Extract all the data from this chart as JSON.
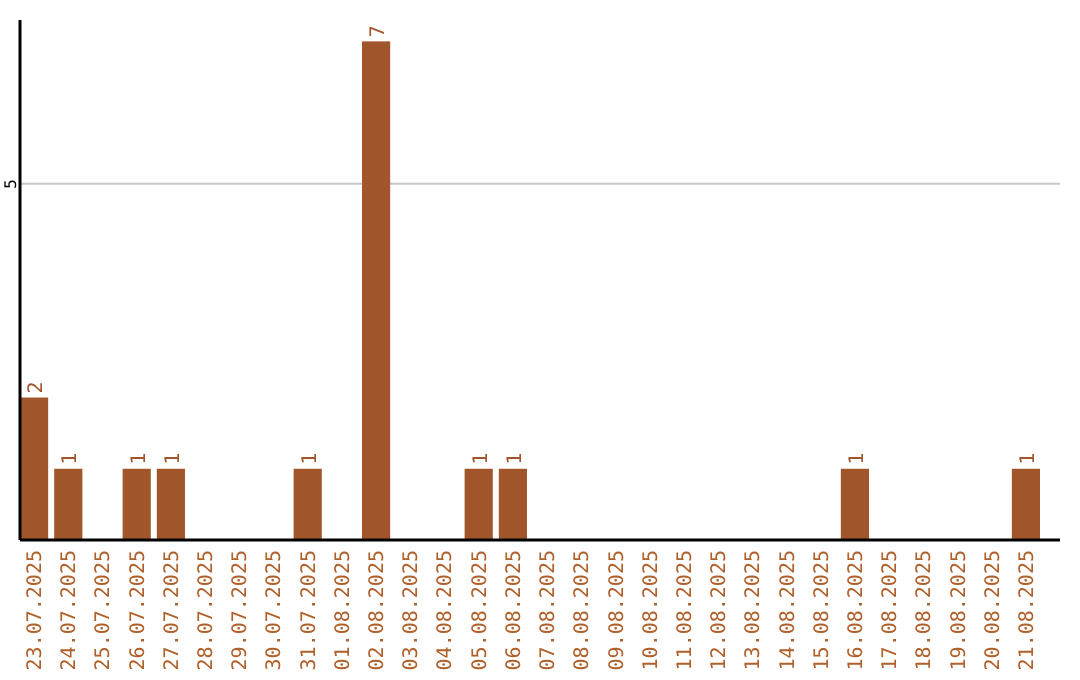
{
  "chart_data": {
    "type": "bar",
    "categories": [
      "23.07.2025",
      "24.07.2025",
      "25.07.2025",
      "26.07.2025",
      "27.07.2025",
      "28.07.2025",
      "29.07.2025",
      "30.07.2025",
      "31.07.2025",
      "01.08.2025",
      "02.08.2025",
      "03.08.2025",
      "04.08.2025",
      "05.08.2025",
      "06.08.2025",
      "07.08.2025",
      "08.08.2025",
      "09.08.2025",
      "10.08.2025",
      "11.08.2025",
      "12.08.2025",
      "13.08.2025",
      "14.08.2025",
      "15.08.2025",
      "16.08.2025",
      "17.08.2025",
      "18.08.2025",
      "19.08.2025",
      "20.08.2025",
      "21.08.2025"
    ],
    "values": [
      2,
      1,
      0,
      1,
      1,
      0,
      0,
      0,
      1,
      0,
      7,
      0,
      0,
      1,
      1,
      0,
      0,
      0,
      0,
      0,
      0,
      0,
      0,
      0,
      1,
      0,
      0,
      0,
      0,
      1
    ],
    "value_labels": [
      "2",
      "1",
      null,
      "1",
      "1",
      null,
      null,
      null,
      "1",
      null,
      "7",
      null,
      null,
      "1",
      "1",
      null,
      null,
      null,
      null,
      null,
      null,
      null,
      null,
      null,
      "1",
      null,
      null,
      null,
      null,
      "1"
    ],
    "color": "#a0562a",
    "ylim": [
      0,
      7.3
    ],
    "yticks": [
      5
    ],
    "grid": "y"
  }
}
